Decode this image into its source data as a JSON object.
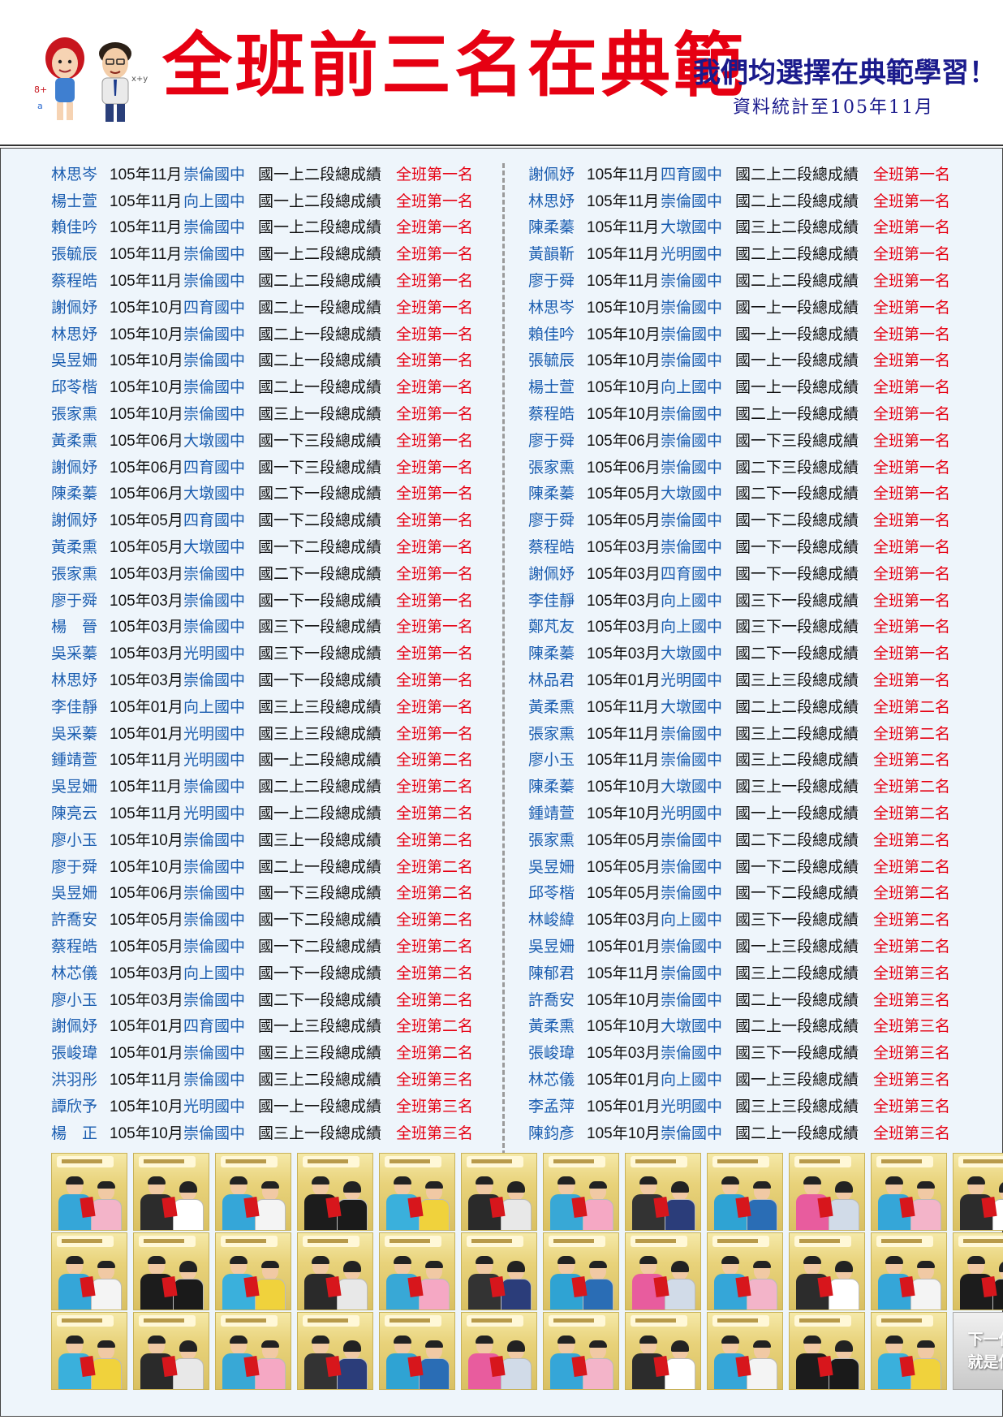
{
  "header": {
    "title": "全班前三名在典範",
    "slogan": "我們均選擇在典範學習！",
    "stat_date": "資料統計至105年11月"
  },
  "left_column": [
    {
      "name": "林思岑",
      "date": "105年11月",
      "school": "崇倫國中",
      "exam": "國一上二段總成績",
      "rank": "全班第一名"
    },
    {
      "name": "楊士萱",
      "date": "105年11月",
      "school": "向上國中",
      "exam": "國一上二段總成績",
      "rank": "全班第一名"
    },
    {
      "name": "賴佳吟",
      "date": "105年11月",
      "school": "崇倫國中",
      "exam": "國一上二段總成績",
      "rank": "全班第一名"
    },
    {
      "name": "張毓辰",
      "date": "105年11月",
      "school": "崇倫國中",
      "exam": "國一上二段總成績",
      "rank": "全班第一名"
    },
    {
      "name": "蔡程皓",
      "date": "105年11月",
      "school": "崇倫國中",
      "exam": "國二上二段總成績",
      "rank": "全班第一名"
    },
    {
      "name": "謝佩妤",
      "date": "105年10月",
      "school": "四育國中",
      "exam": "國二上一段總成績",
      "rank": "全班第一名"
    },
    {
      "name": "林思妤",
      "date": "105年10月",
      "school": "崇倫國中",
      "exam": "國二上一段總成績",
      "rank": "全班第一名"
    },
    {
      "name": "吳昱姍",
      "date": "105年10月",
      "school": "崇倫國中",
      "exam": "國二上一段總成績",
      "rank": "全班第一名"
    },
    {
      "name": "邱苓楷",
      "date": "105年10月",
      "school": "崇倫國中",
      "exam": "國二上一段總成績",
      "rank": "全班第一名"
    },
    {
      "name": "張家熏",
      "date": "105年10月",
      "school": "崇倫國中",
      "exam": "國三上一段總成績",
      "rank": "全班第一名"
    },
    {
      "name": "黃柔熏",
      "date": "105年06月",
      "school": "大墩國中",
      "exam": "國一下三段總成績",
      "rank": "全班第一名"
    },
    {
      "name": "謝佩妤",
      "date": "105年06月",
      "school": "四育國中",
      "exam": "國一下三段總成績",
      "rank": "全班第一名"
    },
    {
      "name": "陳柔蓁",
      "date": "105年06月",
      "school": "大墩國中",
      "exam": "國二下一段總成績",
      "rank": "全班第一名"
    },
    {
      "name": "謝佩妤",
      "date": "105年05月",
      "school": "四育國中",
      "exam": "國一下二段總成績",
      "rank": "全班第一名"
    },
    {
      "name": "黃柔熏",
      "date": "105年05月",
      "school": "大墩國中",
      "exam": "國一下二段總成績",
      "rank": "全班第一名"
    },
    {
      "name": "張家熏",
      "date": "105年03月",
      "school": "崇倫國中",
      "exam": "國二下一段總成績",
      "rank": "全班第一名"
    },
    {
      "name": "廖于舜",
      "date": "105年03月",
      "school": "崇倫國中",
      "exam": "國一下一段總成績",
      "rank": "全班第一名"
    },
    {
      "name": "楊　晉",
      "date": "105年03月",
      "school": "崇倫國中",
      "exam": "國三下一段總成績",
      "rank": "全班第一名"
    },
    {
      "name": "吳采蓁",
      "date": "105年03月",
      "school": "光明國中",
      "exam": "國三下一段總成績",
      "rank": "全班第一名"
    },
    {
      "name": "林思妤",
      "date": "105年03月",
      "school": "崇倫國中",
      "exam": "國一下一段總成績",
      "rank": "全班第一名"
    },
    {
      "name": "李佳靜",
      "date": "105年01月",
      "school": "向上國中",
      "exam": "國三上三段總成績",
      "rank": "全班第一名"
    },
    {
      "name": "吳采蓁",
      "date": "105年01月",
      "school": "光明國中",
      "exam": "國三上三段總成績",
      "rank": "全班第一名"
    },
    {
      "name": "鍾靖萱",
      "date": "105年11月",
      "school": "光明國中",
      "exam": "國一上二段總成績",
      "rank": "全班第二名"
    },
    {
      "name": "吳昱姍",
      "date": "105年11月",
      "school": "崇倫國中",
      "exam": "國二上二段總成績",
      "rank": "全班第二名"
    },
    {
      "name": "陳亮云",
      "date": "105年11月",
      "school": "光明國中",
      "exam": "國一上二段總成績",
      "rank": "全班第二名"
    },
    {
      "name": "廖小玉",
      "date": "105年10月",
      "school": "崇倫國中",
      "exam": "國三上一段總成績",
      "rank": "全班第二名"
    },
    {
      "name": "廖于舜",
      "date": "105年10月",
      "school": "崇倫國中",
      "exam": "國二上一段總成績",
      "rank": "全班第二名"
    },
    {
      "name": "吳昱姍",
      "date": "105年06月",
      "school": "崇倫國中",
      "exam": "國一下三段總成績",
      "rank": "全班第二名"
    },
    {
      "name": "許喬安",
      "date": "105年05月",
      "school": "崇倫國中",
      "exam": "國一下二段總成績",
      "rank": "全班第二名"
    },
    {
      "name": "蔡程皓",
      "date": "105年05月",
      "school": "崇倫國中",
      "exam": "國一下二段總成績",
      "rank": "全班第二名"
    },
    {
      "name": "林芯儀",
      "date": "105年03月",
      "school": "向上國中",
      "exam": "國一下一段總成績",
      "rank": "全班第二名"
    },
    {
      "name": "廖小玉",
      "date": "105年03月",
      "school": "崇倫國中",
      "exam": "國二下一段總成績",
      "rank": "全班第二名"
    },
    {
      "name": "謝佩妤",
      "date": "105年01月",
      "school": "四育國中",
      "exam": "國一上三段總成績",
      "rank": "全班第二名"
    },
    {
      "name": "張峻瑋",
      "date": "105年01月",
      "school": "崇倫國中",
      "exam": "國三上三段總成績",
      "rank": "全班第二名"
    },
    {
      "name": "洪羽彤",
      "date": "105年11月",
      "school": "崇倫國中",
      "exam": "國三上二段總成績",
      "rank": "全班第三名"
    },
    {
      "name": "譚欣予",
      "date": "105年10月",
      "school": "光明國中",
      "exam": "國一上一段總成績",
      "rank": "全班第三名"
    },
    {
      "name": "楊　正",
      "date": "105年10月",
      "school": "崇倫國中",
      "exam": "國三上一段總成績",
      "rank": "全班第三名"
    }
  ],
  "right_column": [
    {
      "name": "謝佩妤",
      "date": "105年11月",
      "school": "四育國中",
      "exam": "國二上二段總成績",
      "rank": "全班第一名"
    },
    {
      "name": "林思妤",
      "date": "105年11月",
      "school": "崇倫國中",
      "exam": "國二上二段總成績",
      "rank": "全班第一名"
    },
    {
      "name": "陳柔蓁",
      "date": "105年11月",
      "school": "大墩國中",
      "exam": "國三上二段總成績",
      "rank": "全班第一名"
    },
    {
      "name": "黃韻靳",
      "date": "105年11月",
      "school": "光明國中",
      "exam": "國二上二段總成績",
      "rank": "全班第一名"
    },
    {
      "name": "廖于舜",
      "date": "105年11月",
      "school": "崇倫國中",
      "exam": "國二上二段總成績",
      "rank": "全班第一名"
    },
    {
      "name": "林思岑",
      "date": "105年10月",
      "school": "崇倫國中",
      "exam": "國一上一段總成績",
      "rank": "全班第一名"
    },
    {
      "name": "賴佳吟",
      "date": "105年10月",
      "school": "崇倫國中",
      "exam": "國一上一段總成績",
      "rank": "全班第一名"
    },
    {
      "name": "張毓辰",
      "date": "105年10月",
      "school": "崇倫國中",
      "exam": "國一上一段總成績",
      "rank": "全班第一名"
    },
    {
      "name": "楊士萱",
      "date": "105年10月",
      "school": "向上國中",
      "exam": "國一上一段總成績",
      "rank": "全班第一名"
    },
    {
      "name": "蔡程皓",
      "date": "105年10月",
      "school": "崇倫國中",
      "exam": "國二上一段總成績",
      "rank": "全班第一名"
    },
    {
      "name": "廖于舜",
      "date": "105年06月",
      "school": "崇倫國中",
      "exam": "國一下三段總成績",
      "rank": "全班第一名"
    },
    {
      "name": "張家熏",
      "date": "105年06月",
      "school": "崇倫國中",
      "exam": "國二下三段總成績",
      "rank": "全班第一名"
    },
    {
      "name": "陳柔蓁",
      "date": "105年05月",
      "school": "大墩國中",
      "exam": "國二下一段總成績",
      "rank": "全班第一名"
    },
    {
      "name": "廖于舜",
      "date": "105年05月",
      "school": "崇倫國中",
      "exam": "國一下二段總成績",
      "rank": "全班第一名"
    },
    {
      "name": "蔡程皓",
      "date": "105年03月",
      "school": "崇倫國中",
      "exam": "國一下一段總成績",
      "rank": "全班第一名"
    },
    {
      "name": "謝佩妤",
      "date": "105年03月",
      "school": "四育國中",
      "exam": "國一下一段總成績",
      "rank": "全班第一名"
    },
    {
      "name": "李佳靜",
      "date": "105年03月",
      "school": "向上國中",
      "exam": "國三下一段總成績",
      "rank": "全班第一名"
    },
    {
      "name": "鄭芃友",
      "date": "105年03月",
      "school": "向上國中",
      "exam": "國三下一段總成績",
      "rank": "全班第一名"
    },
    {
      "name": "陳柔蓁",
      "date": "105年03月",
      "school": "大墩國中",
      "exam": "國二下一段總成績",
      "rank": "全班第一名"
    },
    {
      "name": "林品君",
      "date": "105年01月",
      "school": "光明國中",
      "exam": "國三上三段總成績",
      "rank": "全班第一名"
    },
    {
      "name": "黃柔熏",
      "date": "105年11月",
      "school": "大墩國中",
      "exam": "國二上二段總成績",
      "rank": "全班第二名"
    },
    {
      "name": "張家熏",
      "date": "105年11月",
      "school": "崇倫國中",
      "exam": "國三上二段總成績",
      "rank": "全班第二名"
    },
    {
      "name": "廖小玉",
      "date": "105年11月",
      "school": "崇倫國中",
      "exam": "國三上二段總成績",
      "rank": "全班第二名"
    },
    {
      "name": "陳柔蓁",
      "date": "105年10月",
      "school": "大墩國中",
      "exam": "國三上一段總成績",
      "rank": "全班第二名"
    },
    {
      "name": "鍾靖萱",
      "date": "105年10月",
      "school": "光明國中",
      "exam": "國一上一段總成績",
      "rank": "全班第二名"
    },
    {
      "name": "張家熏",
      "date": "105年05月",
      "school": "崇倫國中",
      "exam": "國二下二段總成績",
      "rank": "全班第二名"
    },
    {
      "name": "吳昱姍",
      "date": "105年05月",
      "school": "崇倫國中",
      "exam": "國一下二段總成績",
      "rank": "全班第二名"
    },
    {
      "name": "邱苓楷",
      "date": "105年05月",
      "school": "崇倫國中",
      "exam": "國一下二段總成績",
      "rank": "全班第二名"
    },
    {
      "name": "林峻緯",
      "date": "105年03月",
      "school": "向上國中",
      "exam": "國三下一段總成績",
      "rank": "全班第二名"
    },
    {
      "name": "吳昱姍",
      "date": "105年01月",
      "school": "崇倫國中",
      "exam": "國一上三段總成績",
      "rank": "全班第二名"
    },
    {
      "name": "陳郁君",
      "date": "105年11月",
      "school": "崇倫國中",
      "exam": "國三上二段總成績",
      "rank": "全班第三名"
    },
    {
      "name": "許喬安",
      "date": "105年10月",
      "school": "崇倫國中",
      "exam": "國二上一段總成績",
      "rank": "全班第三名"
    },
    {
      "name": "黃柔熏",
      "date": "105年10月",
      "school": "大墩國中",
      "exam": "國二上一段總成績",
      "rank": "全班第三名"
    },
    {
      "name": "張峻瑋",
      "date": "105年03月",
      "school": "崇倫國中",
      "exam": "國三下一段總成績",
      "rank": "全班第三名"
    },
    {
      "name": "林芯儀",
      "date": "105年01月",
      "school": "向上國中",
      "exam": "國一上三段總成績",
      "rank": "全班第三名"
    },
    {
      "name": "李孟萍",
      "date": "105年01月",
      "school": "光明國中",
      "exam": "國三上三段總成績",
      "rank": "全班第三名"
    },
    {
      "name": "陳鈞彥",
      "date": "105年10月",
      "school": "崇倫國中",
      "exam": "國二上一段總成績",
      "rank": "全班第三名"
    }
  ],
  "photo_grid": {
    "rows": 3,
    "cols": 12,
    "next_tile": [
      "下一位",
      "就是你"
    ]
  },
  "colors": {
    "title_red": "#e60012",
    "slogan_navy": "#1a1a8c",
    "name_blue": "#1a5db0",
    "rank_red": "#e60012",
    "list_bg": "#eef5fb"
  }
}
